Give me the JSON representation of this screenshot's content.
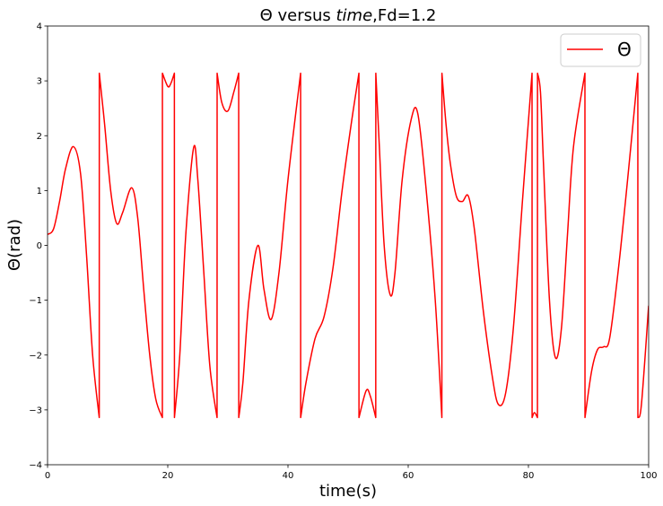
{
  "chart_data": {
    "type": "line",
    "title_prefix": "Θ versus ",
    "title_italic": "time",
    "title_suffix": ",Fd=1.2",
    "xlabel": "time(s)",
    "ylabel": "Θ(rad)",
    "xlim": [
      0,
      100
    ],
    "ylim": [
      -4,
      4
    ],
    "xticks": [
      0,
      20,
      40,
      60,
      80,
      100
    ],
    "yticks": [
      -4,
      -3,
      -2,
      -1,
      0,
      1,
      2,
      3,
      4
    ],
    "ytick_labels": [
      "−4",
      "−3",
      "−2",
      "−1",
      "0",
      "1",
      "2",
      "3",
      "4"
    ],
    "grid": false,
    "legend_position": "top-right",
    "series": [
      {
        "name": "Θ",
        "color": "#ff0000",
        "x": [
          0,
          1,
          2,
          3,
          4.3,
          5.5,
          6.5,
          7.5,
          8.6,
          8.61,
          9.5,
          10.5,
          11.5,
          12.5,
          14,
          15,
          16,
          17,
          18,
          19.1,
          19.11,
          20,
          20.5,
          21.1,
          21.11,
          22,
          23,
          24.3,
          25,
          26,
          27,
          28.2,
          28.21,
          29,
          30,
          31,
          31.8,
          31.81,
          32.5,
          33.5,
          35,
          36,
          37.2,
          38.5,
          40,
          42.1,
          42.11,
          43,
          44.5,
          46,
          47.5,
          49,
          50.5,
          51.8,
          51.81,
          53,
          53.7,
          54.6,
          54.61,
          55.2,
          56,
          57,
          57.8,
          59,
          60.5,
          61.6,
          63,
          64.5,
          65.6,
          65.61,
          66.3,
          67,
          68,
          69,
          70,
          71,
          72.5,
          74,
          75,
          76.2,
          77.5,
          79,
          80.6,
          80.61,
          81,
          81.5,
          81.51,
          82,
          82.5,
          83.5,
          84.5,
          85.5,
          86.5,
          87.5,
          89.4,
          89.41,
          90.5,
          91.5,
          92.5,
          93.5,
          95,
          96.5,
          98.2,
          98.21,
          98.8,
          100
        ],
        "y": [
          0.2,
          0.3,
          0.8,
          1.4,
          1.8,
          1.3,
          -0.2,
          -2,
          -3.14,
          3.14,
          2.2,
          1.0,
          0.4,
          0.6,
          1.05,
          0.5,
          -0.8,
          -2.0,
          -2.8,
          -3.14,
          3.14,
          2.9,
          2.95,
          3.14,
          -3.14,
          -2.0,
          0.2,
          1.78,
          1.2,
          -0.5,
          -2.2,
          -3.14,
          3.14,
          2.6,
          2.45,
          2.8,
          3.14,
          -3.14,
          -2.5,
          -1.0,
          0.0,
          -0.8,
          -1.35,
          -0.5,
          1.2,
          3.14,
          -3.14,
          -2.5,
          -1.7,
          -1.3,
          -0.4,
          1.0,
          2.2,
          3.14,
          -3.14,
          -2.65,
          -2.75,
          -3.14,
          3.14,
          1.8,
          0.0,
          -0.9,
          -0.5,
          1.2,
          2.3,
          2.4,
          1.0,
          -1.0,
          -3.14,
          3.14,
          2.2,
          1.5,
          0.9,
          0.8,
          0.9,
          0.3,
          -1.2,
          -2.4,
          -2.9,
          -2.7,
          -1.5,
          0.8,
          3.14,
          -3.14,
          -3.05,
          -3.14,
          3.14,
          2.8,
          1.5,
          -1.0,
          -2.05,
          -1.5,
          0.2,
          1.8,
          3.14,
          -3.14,
          -2.3,
          -1.9,
          -1.85,
          -1.7,
          -0.4,
          1.2,
          3.14,
          -3.14,
          -2.9,
          -1.1
        ]
      }
    ]
  }
}
